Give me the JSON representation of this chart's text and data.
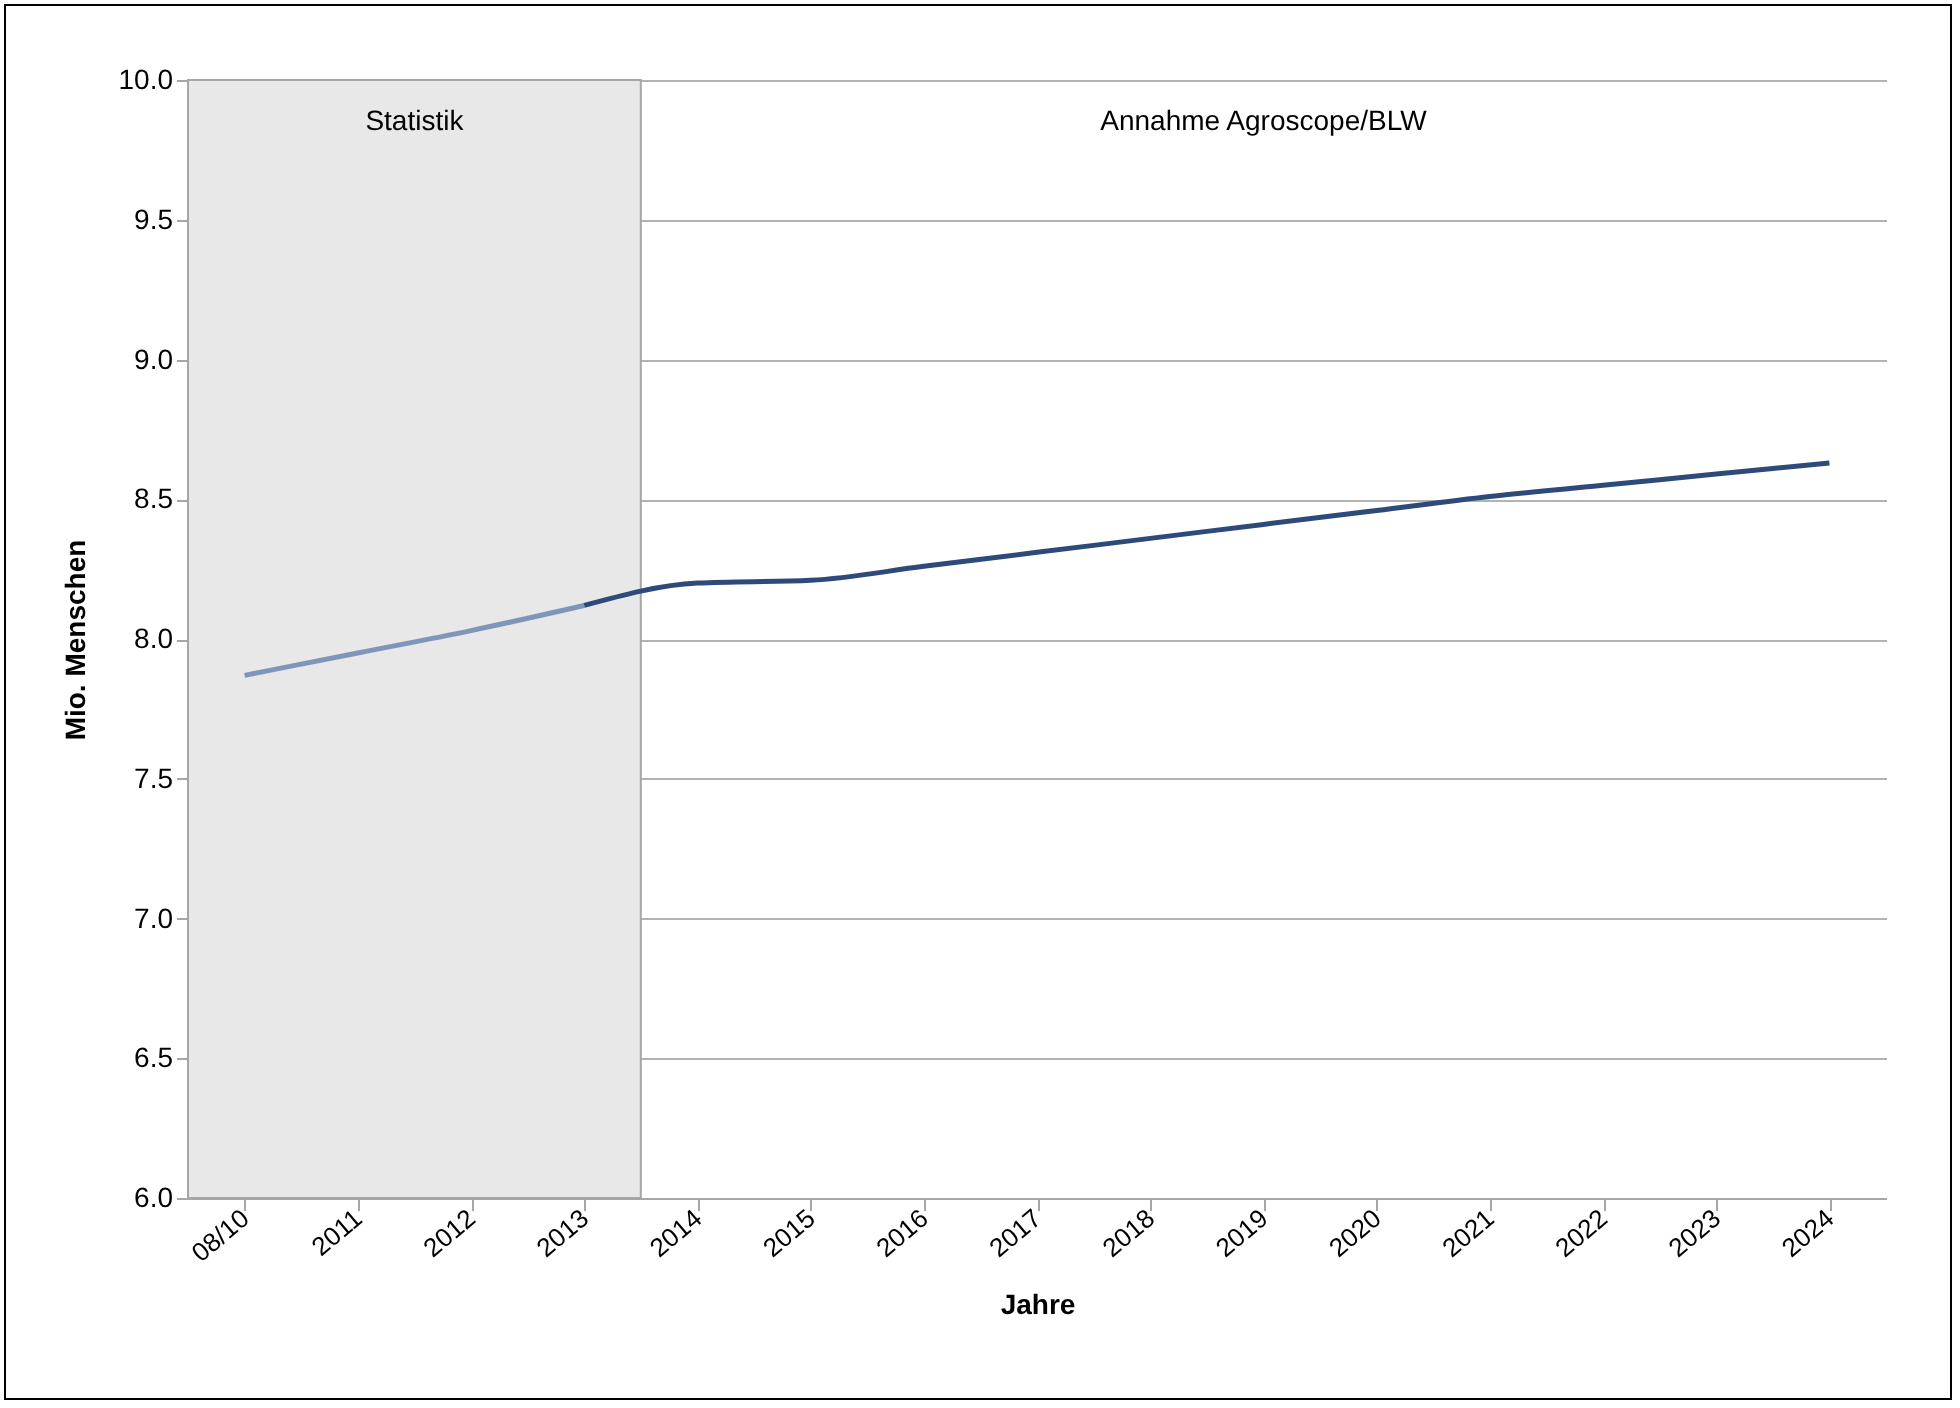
{
  "chart_data": {
    "type": "line",
    "xlabel": "Jahre",
    "ylabel": "Mio. Menschen",
    "categories": [
      "08/10",
      "2011",
      "2012",
      "2013",
      "2014",
      "2015",
      "2016",
      "2017",
      "2018",
      "2019",
      "2020",
      "2021",
      "2022",
      "2023",
      "2024"
    ],
    "series": [
      {
        "color": "#7f96b8",
        "values": [
          7.87,
          7.95,
          8.03,
          8.12,
          null,
          null,
          null,
          null,
          null,
          null,
          null,
          null,
          null,
          null,
          null
        ]
      },
      {
        "color": "#2e4a7a",
        "values": [
          null,
          null,
          null,
          8.12,
          8.2,
          8.21,
          8.26,
          8.31,
          8.36,
          8.41,
          8.46,
          8.51,
          8.55,
          8.59,
          8.63
        ]
      }
    ],
    "ylim": [
      6,
      10
    ],
    "yticks": [
      {
        "value": 6,
        "label": "6.0"
      },
      {
        "value": 6.5,
        "label": "6.5"
      },
      {
        "value": 7,
        "label": "7.0"
      },
      {
        "value": 7.5,
        "label": "7.5"
      },
      {
        "value": 8,
        "label": "8.0"
      },
      {
        "value": 8.5,
        "label": "8.5"
      },
      {
        "value": 9,
        "label": "9.0"
      },
      {
        "value": 9.5,
        "label": "9.5"
      },
      {
        "value": 10,
        "label": "10.0"
      }
    ],
    "bands": [
      {
        "axis": "x",
        "from": "08/10",
        "to": "2013",
        "label": "Statistik",
        "color": "#e8e8e8"
      }
    ],
    "annotations": [
      "Annahme Agroscope/BLW"
    ],
    "grid": "y",
    "line_style": "solid",
    "marker": "none"
  }
}
